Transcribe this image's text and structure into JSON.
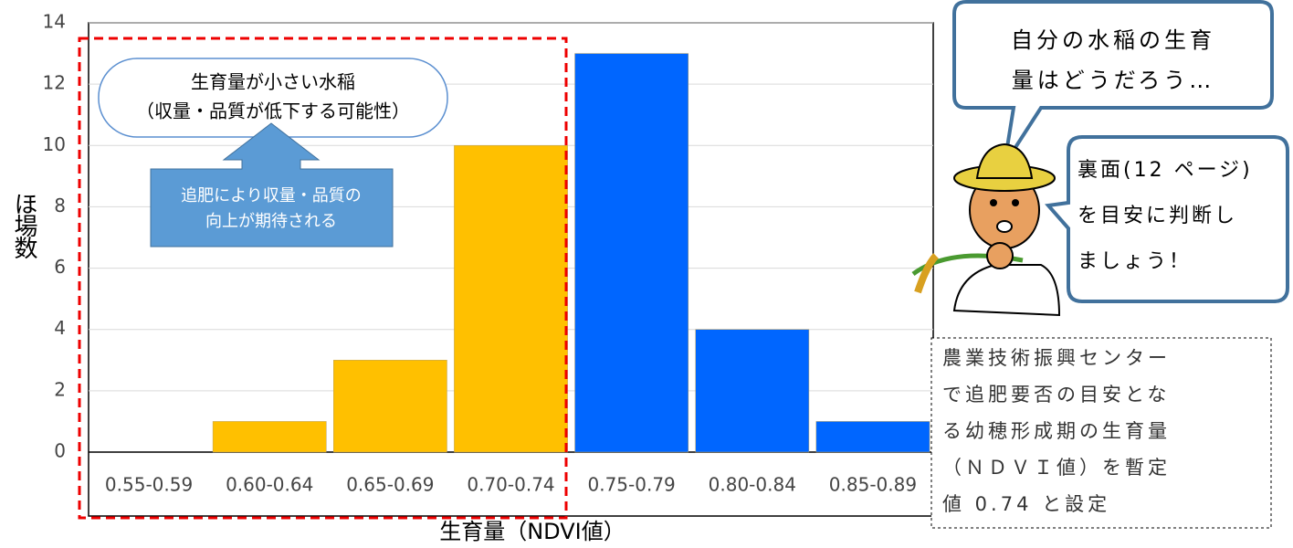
{
  "chart_data": {
    "type": "bar",
    "categories": [
      "0.55-0.59",
      "0.60-0.64",
      "0.65-0.69",
      "0.70-0.74",
      "0.75-0.79",
      "0.80-0.84",
      "0.85-0.89"
    ],
    "values": [
      0,
      1,
      3,
      10,
      13,
      4,
      1
    ],
    "colors": [
      "#FFC000",
      "#FFC000",
      "#FFC000",
      "#FFC000",
      "#0066FF",
      "#0066FF",
      "#0066FF"
    ],
    "ylim": [
      0,
      14
    ],
    "yticks": [
      0,
      2,
      4,
      6,
      8,
      10,
      12,
      14
    ],
    "grid": true,
    "y_label": "ほ場数",
    "x_label": "生育量（NDVI値）",
    "annotations": {
      "low_growth": [
        "生育量が小さい水稲",
        "（収量・品質が低下する可能性）"
      ],
      "topdress": [
        "追肥により収量・品質の",
        "向上が期待される"
      ],
      "bubble_question": [
        "自分の水稲の生育",
        "量はどうだろう…"
      ],
      "bubble_advice": [
        "裏面(12 ページ)",
        "を目安に判断し",
        "ましょう！"
      ],
      "note": [
        "農業技術振興センター",
        "で追肥要否の目安とな",
        "る幼穂形成期の生育量",
        "（ＮＤＶＩ値）を暫定",
        "値 0.74 と設定"
      ]
    }
  }
}
